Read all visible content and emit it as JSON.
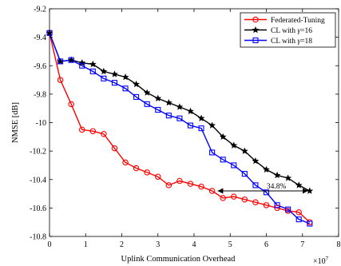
{
  "chart_data": {
    "type": "line",
    "xlabel": "Uplink Communication Overhead",
    "ylabel": "NMSE [dB]",
    "x_multiplier": "×10",
    "x_multiplier_exp": "7",
    "xlim": [
      0,
      8
    ],
    "ylim": [
      -10.8,
      -9.2
    ],
    "x_ticks": [
      "0",
      "1",
      "2",
      "3",
      "4",
      "5",
      "6",
      "7",
      "8"
    ],
    "y_ticks": [
      "-9.2",
      "-9.4",
      "-9.6",
      "-9.8",
      "-10",
      "-10.2",
      "-10.4",
      "-10.6",
      "-10.8"
    ],
    "grid": false,
    "legend_position": "top-right",
    "series": [
      {
        "name": "Federated-Tuning",
        "color": "#ff0000",
        "marker": "circle",
        "x": [
          0,
          0.3,
          0.6,
          0.9,
          1.2,
          1.5,
          1.8,
          2.1,
          2.4,
          2.7,
          3.0,
          3.3,
          3.6,
          3.9,
          4.2,
          4.5,
          4.8,
          5.1,
          5.4,
          5.7,
          6.0,
          6.3,
          6.6,
          6.9,
          7.2
        ],
        "y": [
          -9.37,
          -9.7,
          -9.87,
          -10.05,
          -10.06,
          -10.08,
          -10.18,
          -10.28,
          -10.32,
          -10.35,
          -10.38,
          -10.44,
          -10.41,
          -10.43,
          -10.45,
          -10.48,
          -10.53,
          -10.52,
          -10.54,
          -10.56,
          -10.58,
          -10.6,
          -10.62,
          -10.63,
          -10.7
        ]
      },
      {
        "name": "CL with γ=16",
        "name_prefix": "CL with ",
        "name_gamma": "γ",
        "name_value": "=16",
        "color": "#000000",
        "marker": "star",
        "x": [
          0,
          0.3,
          0.6,
          0.9,
          1.2,
          1.5,
          1.8,
          2.1,
          2.4,
          2.7,
          3.0,
          3.3,
          3.6,
          3.9,
          4.2,
          4.5,
          4.8,
          5.1,
          5.4,
          5.7,
          6.0,
          6.3,
          6.6,
          6.9,
          7.2
        ],
        "y": [
          -9.37,
          -9.57,
          -9.56,
          -9.58,
          -9.59,
          -9.64,
          -9.66,
          -9.68,
          -9.73,
          -9.79,
          -9.83,
          -9.86,
          -9.89,
          -9.92,
          -9.97,
          -10.02,
          -10.1,
          -10.16,
          -10.2,
          -10.27,
          -10.33,
          -10.37,
          -10.39,
          -10.44,
          -10.48
        ]
      },
      {
        "name": "CL with γ=18",
        "name_prefix": "CL with ",
        "name_gamma": "γ",
        "name_value": "=18",
        "color": "#0000ff",
        "marker": "square",
        "x": [
          0,
          0.3,
          0.6,
          0.9,
          1.2,
          1.5,
          1.8,
          2.1,
          2.4,
          2.7,
          3.0,
          3.3,
          3.6,
          3.9,
          4.2,
          4.5,
          4.8,
          5.1,
          5.4,
          5.7,
          6.0,
          6.3,
          6.6,
          6.9,
          7.2
        ],
        "y": [
          -9.37,
          -9.57,
          -9.56,
          -9.6,
          -9.64,
          -9.69,
          -9.72,
          -9.76,
          -9.82,
          -9.87,
          -9.91,
          -9.95,
          -9.97,
          -10.02,
          -10.04,
          -10.21,
          -10.26,
          -10.3,
          -10.36,
          -10.44,
          -10.49,
          -10.58,
          -10.61,
          -10.68,
          -10.71
        ]
      }
    ],
    "annotations": [
      {
        "text": "34.8%",
        "type": "double-arrow",
        "from": [
          4.65,
          -10.48
        ],
        "to": [
          7.2,
          -10.48
        ]
      }
    ]
  }
}
